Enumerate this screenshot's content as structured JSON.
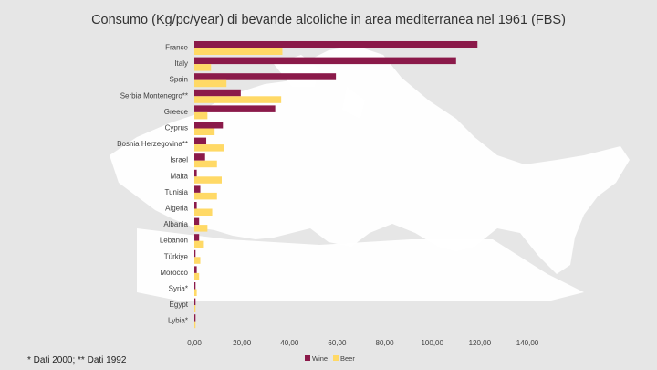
{
  "slide": {
    "title": "Consumo (Kg/pc/year) di bevande alcoliche in area mediterranea nel 1961 (FBS)",
    "footnote": "* Dati 2000; ** Dati 1992"
  },
  "colors": {
    "wine": "#8b1a4a",
    "beer": "#ffd966",
    "background": "#e6e6e6",
    "map": "#ffffff"
  },
  "chart_data": {
    "type": "bar",
    "orientation": "horizontal",
    "title": "Consumo (Kg/pc/year) di bevande alcoliche in area mediterranea nel 1961 (FBS)",
    "categories": [
      "France",
      "Italy",
      "Spain",
      "Serbia Montenegro**",
      "Greece",
      "Cyprus",
      "Bosnia Herzegovina**",
      "Israel",
      "Malta",
      "Tunisia",
      "Algeria",
      "Albania",
      "Lebanon",
      "Türkiye",
      "Morocco",
      "Syria*",
      "Egypt",
      "Lybia*"
    ],
    "series": [
      {
        "name": "Wine",
        "color": "#8b1a4a",
        "values": [
          119.0,
          110.0,
          59.5,
          19.5,
          34.0,
          12.0,
          5.0,
          4.5,
          1.0,
          2.5,
          1.0,
          2.0,
          2.0,
          0.5,
          1.0,
          0.5,
          0.5,
          0.5
        ]
      },
      {
        "name": "Beer",
        "color": "#ffd966",
        "values": [
          37.0,
          7.0,
          13.5,
          36.5,
          5.5,
          8.5,
          12.5,
          9.5,
          11.5,
          9.5,
          7.5,
          5.5,
          4.0,
          2.5,
          2.0,
          1.0,
          0.5,
          0.5
        ]
      }
    ],
    "x_ticks": [
      "0,00",
      "20,00",
      "40,00",
      "60,00",
      "80,00",
      "100,00",
      "120,00",
      "140,00"
    ],
    "xlim": [
      0,
      140
    ],
    "grid": false,
    "legend": {
      "position": "bottom",
      "labels": [
        "Wine",
        "Beer"
      ]
    }
  }
}
